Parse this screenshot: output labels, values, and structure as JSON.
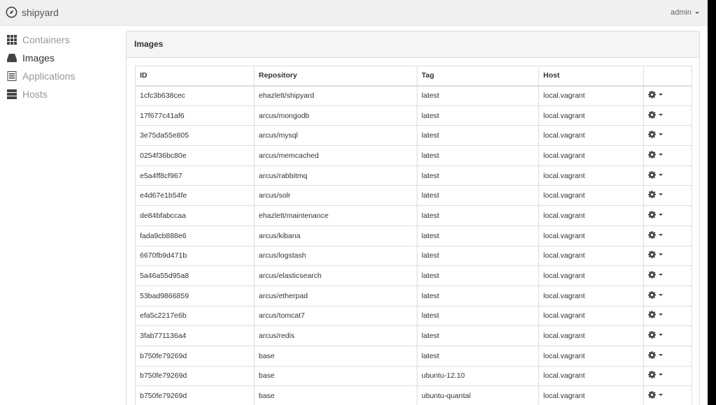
{
  "app": {
    "title": "shipyard",
    "user": "admin"
  },
  "sidebar": {
    "items": [
      {
        "label": "Containers",
        "icon": "grid-icon"
      },
      {
        "label": "Images",
        "icon": "hdd-icon",
        "active": true
      },
      {
        "label": "Applications",
        "icon": "list-alt-icon"
      },
      {
        "label": "Hosts",
        "icon": "server-icon"
      }
    ]
  },
  "panel": {
    "title": "Images"
  },
  "table": {
    "headers": [
      "ID",
      "Repository",
      "Tag",
      "Host",
      ""
    ],
    "rows": [
      [
        "1cfc3b638cec",
        "ehazlett/shipyard",
        "latest",
        "local.vagrant"
      ],
      [
        "17f677c41af6",
        "arcus/mongodb",
        "latest",
        "local.vagrant"
      ],
      [
        "3e75da55e805",
        "arcus/mysql",
        "latest",
        "local.vagrant"
      ],
      [
        "0254f36bc80e",
        "arcus/memcached",
        "latest",
        "local.vagrant"
      ],
      [
        "e5a4ff8cf967",
        "arcus/rabbitmq",
        "latest",
        "local.vagrant"
      ],
      [
        "e4d67e1b54fe",
        "arcus/solr",
        "latest",
        "local.vagrant"
      ],
      [
        "de84bfabccaa",
        "ehazlett/maintenance",
        "latest",
        "local.vagrant"
      ],
      [
        "fada9cb888e6",
        "arcus/kibana",
        "latest",
        "local.vagrant"
      ],
      [
        "6670fb9d471b",
        "arcus/logstash",
        "latest",
        "local.vagrant"
      ],
      [
        "5a46a55d95a8",
        "arcus/elasticsearch",
        "latest",
        "local.vagrant"
      ],
      [
        "53bad9866859",
        "arcus/etherpad",
        "latest",
        "local.vagrant"
      ],
      [
        "efa5c2217e6b",
        "arcus/tomcat7",
        "latest",
        "local.vagrant"
      ],
      [
        "3fab771136a4",
        "arcus/redis",
        "latest",
        "local.vagrant"
      ],
      [
        "b750fe79269d",
        "base",
        "latest",
        "local.vagrant"
      ],
      [
        "b750fe79269d",
        "base",
        "ubuntu-12.10",
        "local.vagrant"
      ],
      [
        "b750fe79269d",
        "base",
        "ubuntu-quantal",
        "local.vagrant"
      ]
    ]
  }
}
